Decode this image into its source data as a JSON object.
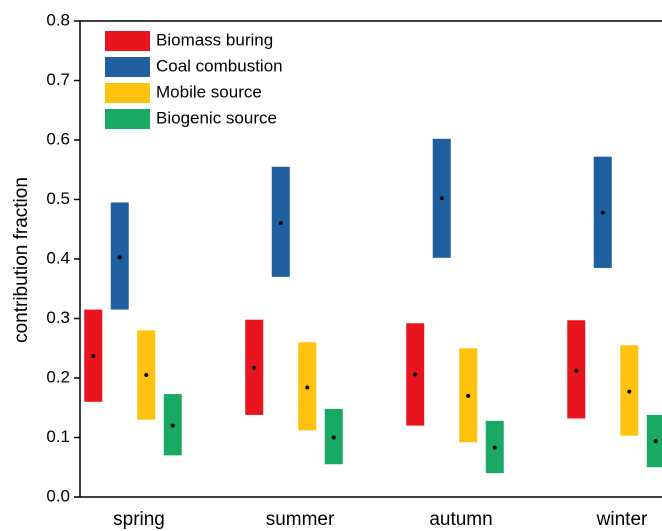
{
  "chart_data": {
    "type": "floating-bar",
    "y_label": "contribution fraction",
    "categories": [
      "spring",
      "summer",
      "autumn",
      "winter"
    ],
    "ylim": [
      0,
      0.8
    ],
    "yticks": [
      {
        "value": 0,
        "label": "0.0"
      },
      0.1,
      0.2,
      0.3,
      0.4,
      0.5,
      0.6,
      0.7,
      0.8
    ],
    "legend": "upper left",
    "series": [
      {
        "name": "Biomass buring",
        "color": "#e8141e",
        "low": [
          0.16,
          0.138,
          0.12,
          0.132
        ],
        "high": [
          0.315,
          0.298,
          0.292,
          0.297
        ],
        "mean": [
          0.237,
          0.217,
          0.206,
          0.212
        ]
      },
      {
        "name": "Coal combustion",
        "color": "#1f5fa0",
        "low": [
          0.315,
          0.37,
          0.402,
          0.385
        ],
        "high": [
          0.495,
          0.555,
          0.602,
          0.572
        ],
        "mean": [
          0.403,
          0.46,
          0.502,
          0.478
        ]
      },
      {
        "name": "Mobile source",
        "color": "#ffc20e",
        "low": [
          0.13,
          0.112,
          0.092,
          0.103
        ],
        "high": [
          0.28,
          0.26,
          0.25,
          0.255
        ],
        "mean": [
          0.205,
          0.184,
          0.17,
          0.177
        ]
      },
      {
        "name": "Biogenic source",
        "color": "#1aa865",
        "low": [
          0.07,
          0.055,
          0.04,
          0.05
        ],
        "high": [
          0.173,
          0.148,
          0.128,
          0.138
        ],
        "mean": [
          0.12,
          0.1,
          0.083,
          0.094
        ]
      }
    ]
  }
}
